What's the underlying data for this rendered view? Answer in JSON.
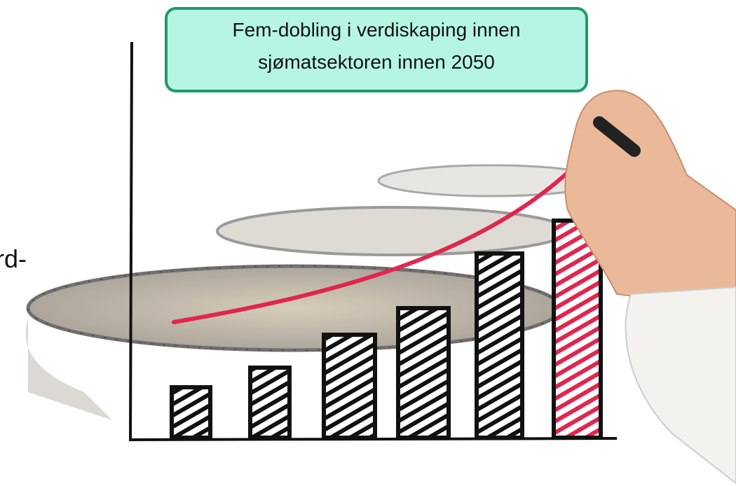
{
  "callout": {
    "lines": [
      "Fem-dobling i verdiskaping innen",
      "sjømatsektoren innen 2050"
    ]
  },
  "side_text": "rd-"
}
